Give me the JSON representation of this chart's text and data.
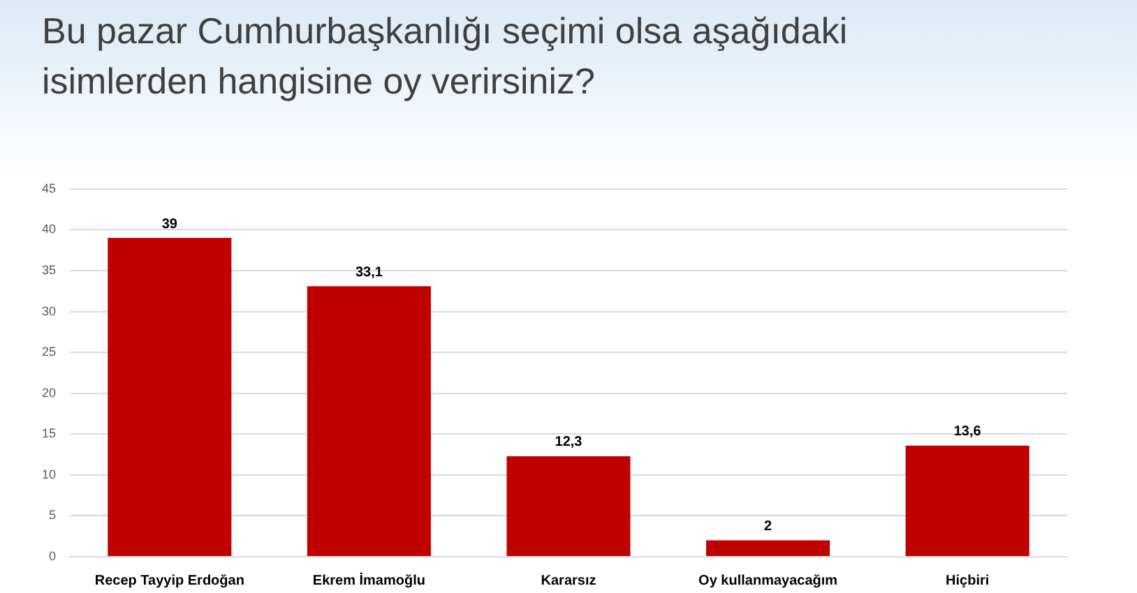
{
  "chart_data": {
    "type": "bar",
    "title": "Bu pazar Cumhurbaşkanlığı seçimi olsa aşağıdaki isimlerden hangisine oy verirsiniz?",
    "categories": [
      "Recep Tayyip Erdoğan",
      "Ekrem İmamoğlu",
      "Kararsız",
      "Oy kullanmayacağım",
      "Hiçbiri"
    ],
    "values": [
      39,
      33.1,
      12.3,
      2,
      13.6
    ],
    "value_labels": [
      "39",
      "33,1",
      "12,3",
      "2",
      "13,6"
    ],
    "color": "#c00000",
    "ylim": [
      0,
      45
    ],
    "yticks": [
      0,
      5,
      10,
      15,
      20,
      25,
      30,
      35,
      40,
      45
    ],
    "grid": "y",
    "legend": false
  }
}
